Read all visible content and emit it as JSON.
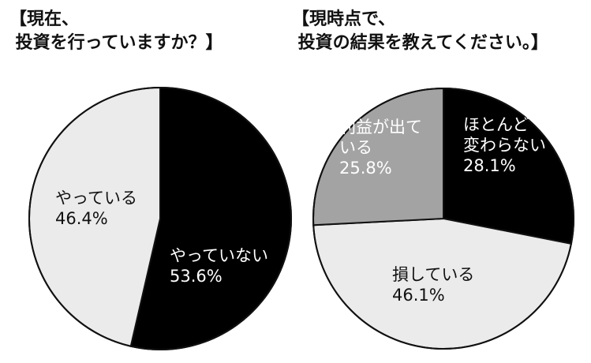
{
  "chart_data": [
    {
      "type": "pie",
      "title": "【現在、\n 投資を行っていますか？】",
      "slices": [
        {
          "label": "やっていない",
          "value": 53.6,
          "value_label": "53.6%",
          "color": "#000000",
          "text_color": "#ffffff"
        },
        {
          "label": "やっている",
          "value": 46.4,
          "value_label": "46.4%",
          "color": "#ebebeb",
          "text_color": "#111111"
        }
      ]
    },
    {
      "type": "pie",
      "title": "【現時点で、\n 投資の結果を教えてください。】",
      "slices": [
        {
          "label": "ほとんど\n変わらない",
          "value": 28.1,
          "value_label": "28.1%",
          "color": "#000000",
          "text_color": "#ffffff"
        },
        {
          "label": "損している",
          "value": 46.1,
          "value_label": "46.1%",
          "color": "#ebebeb",
          "text_color": "#111111"
        },
        {
          "label": "利益が出て\nいる",
          "value": 25.8,
          "value_label": "25.8%",
          "color": "#a3a3a3",
          "text_color": "#ffffff"
        }
      ]
    }
  ]
}
